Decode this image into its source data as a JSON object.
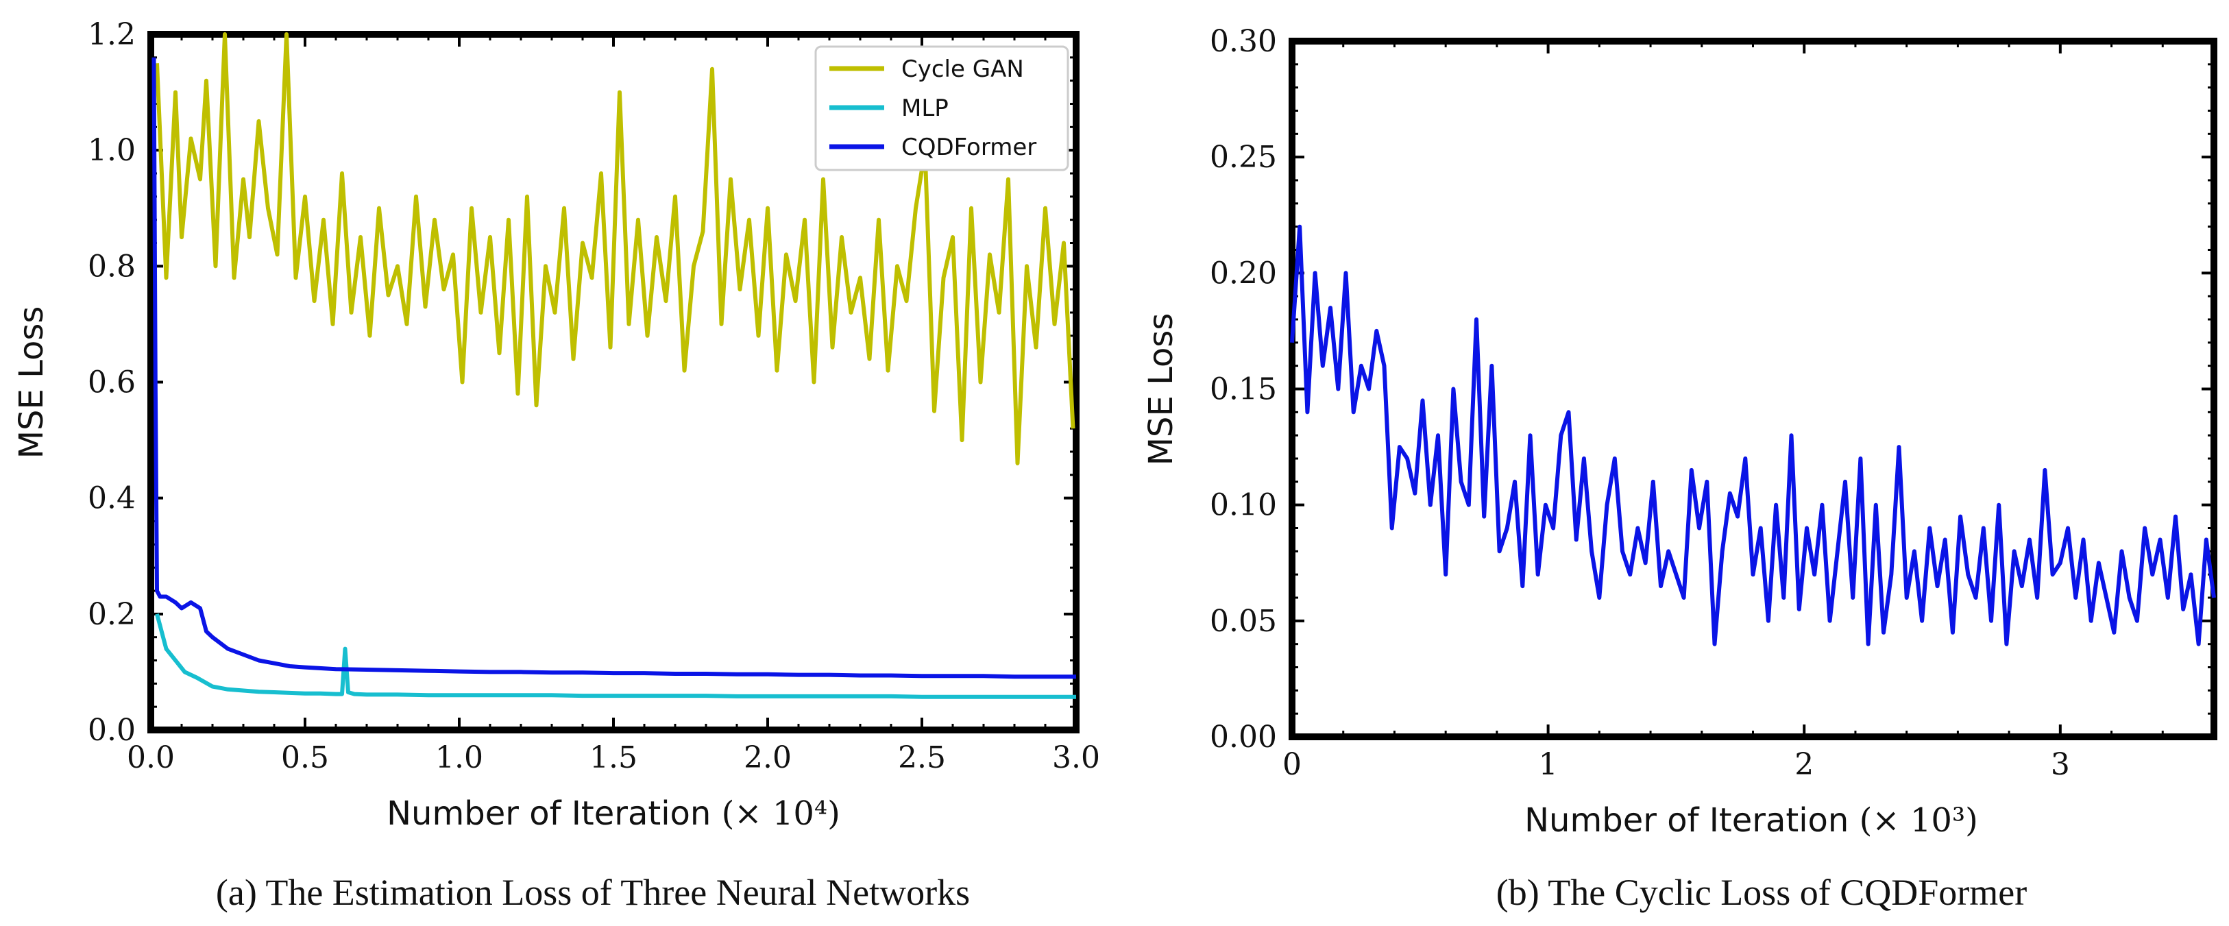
{
  "chart_data": [
    {
      "type": "line",
      "panel": "a",
      "caption": "(a)  The Estimation Loss of Three Neural Networks",
      "xlabel": "Number of Iteration",
      "xlabel_unit": "(× 10⁴)",
      "ylabel": "MSE Loss",
      "xlim": [
        0,
        3.0
      ],
      "ylim": [
        0,
        1.2
      ],
      "xticks": [
        0.0,
        0.5,
        1.0,
        1.5,
        2.0,
        2.5,
        3.0
      ],
      "xtick_labels": [
        "0.0",
        "0.5",
        "1.0",
        "1.5",
        "2.0",
        "2.5",
        "3.0"
      ],
      "yticks": [
        0.0,
        0.2,
        0.4,
        0.6,
        0.8,
        1.0,
        1.2
      ],
      "ytick_labels": [
        "0.0",
        "0.2",
        "0.4",
        "0.6",
        "0.8",
        "1.0",
        "1.2"
      ],
      "legend_position": "top-right",
      "series": [
        {
          "name": "Cycle GAN",
          "color": "#bfbf00",
          "x": [
            0.02,
            0.05,
            0.08,
            0.1,
            0.13,
            0.16,
            0.18,
            0.21,
            0.24,
            0.27,
            0.3,
            0.32,
            0.35,
            0.38,
            0.41,
            0.44,
            0.47,
            0.5,
            0.53,
            0.56,
            0.59,
            0.62,
            0.65,
            0.68,
            0.71,
            0.74,
            0.77,
            0.8,
            0.83,
            0.86,
            0.89,
            0.92,
            0.95,
            0.98,
            1.01,
            1.04,
            1.07,
            1.1,
            1.13,
            1.16,
            1.19,
            1.22,
            1.25,
            1.28,
            1.31,
            1.34,
            1.37,
            1.4,
            1.43,
            1.46,
            1.49,
            1.52,
            1.55,
            1.58,
            1.61,
            1.64,
            1.67,
            1.7,
            1.73,
            1.76,
            1.79,
            1.82,
            1.85,
            1.88,
            1.91,
            1.94,
            1.97,
            2.0,
            2.03,
            2.06,
            2.09,
            2.12,
            2.15,
            2.18,
            2.21,
            2.24,
            2.27,
            2.3,
            2.33,
            2.36,
            2.39,
            2.42,
            2.45,
            2.48,
            2.51,
            2.54,
            2.57,
            2.6,
            2.63,
            2.66,
            2.69,
            2.72,
            2.75,
            2.78,
            2.81,
            2.84,
            2.87,
            2.9,
            2.93,
            2.96,
            2.99
          ],
          "values": [
            1.15,
            0.78,
            1.1,
            0.85,
            1.02,
            0.95,
            1.12,
            0.8,
            1.2,
            0.78,
            0.95,
            0.85,
            1.05,
            0.9,
            0.82,
            1.2,
            0.78,
            0.92,
            0.74,
            0.88,
            0.7,
            0.96,
            0.72,
            0.85,
            0.68,
            0.9,
            0.75,
            0.8,
            0.7,
            0.92,
            0.73,
            0.88,
            0.76,
            0.82,
            0.6,
            0.9,
            0.72,
            0.85,
            0.65,
            0.88,
            0.58,
            0.92,
            0.56,
            0.8,
            0.72,
            0.9,
            0.64,
            0.84,
            0.78,
            0.96,
            0.66,
            1.1,
            0.7,
            0.88,
            0.68,
            0.85,
            0.74,
            0.92,
            0.62,
            0.8,
            0.86,
            1.14,
            0.7,
            0.95,
            0.76,
            0.88,
            0.68,
            0.9,
            0.62,
            0.82,
            0.74,
            0.88,
            0.6,
            0.95,
            0.66,
            0.85,
            0.72,
            0.78,
            0.64,
            0.88,
            0.62,
            0.8,
            0.74,
            0.9,
            1.0,
            0.55,
            0.78,
            0.85,
            0.5,
            0.9,
            0.6,
            0.82,
            0.72,
            0.95,
            0.46,
            0.8,
            0.66,
            0.9,
            0.7,
            0.84,
            0.52
          ]
        },
        {
          "name": "MLP",
          "color": "#17becf",
          "x": [
            0.02,
            0.05,
            0.08,
            0.11,
            0.15,
            0.2,
            0.25,
            0.3,
            0.35,
            0.4,
            0.45,
            0.5,
            0.55,
            0.6,
            0.62,
            0.63,
            0.64,
            0.66,
            0.7,
            0.8,
            0.9,
            1.0,
            1.1,
            1.2,
            1.3,
            1.4,
            1.5,
            1.6,
            1.7,
            1.8,
            1.9,
            2.0,
            2.1,
            2.2,
            2.3,
            2.4,
            2.5,
            2.6,
            2.7,
            2.8,
            2.9,
            3.0
          ],
          "values": [
            0.2,
            0.14,
            0.12,
            0.1,
            0.09,
            0.075,
            0.07,
            0.068,
            0.066,
            0.065,
            0.064,
            0.063,
            0.063,
            0.062,
            0.062,
            0.14,
            0.065,
            0.062,
            0.061,
            0.061,
            0.06,
            0.06,
            0.06,
            0.06,
            0.06,
            0.059,
            0.059,
            0.059,
            0.059,
            0.059,
            0.058,
            0.058,
            0.058,
            0.058,
            0.058,
            0.058,
            0.057,
            0.057,
            0.057,
            0.057,
            0.057,
            0.057
          ]
        },
        {
          "name": "CQDFormer",
          "color": "#0a14e6",
          "x": [
            0.01,
            0.015,
            0.02,
            0.03,
            0.05,
            0.08,
            0.1,
            0.13,
            0.16,
            0.18,
            0.2,
            0.25,
            0.3,
            0.35,
            0.4,
            0.45,
            0.5,
            0.6,
            0.7,
            0.8,
            0.9,
            1.0,
            1.1,
            1.2,
            1.3,
            1.4,
            1.5,
            1.6,
            1.7,
            1.8,
            1.9,
            2.0,
            2.1,
            2.2,
            2.3,
            2.4,
            2.5,
            2.6,
            2.7,
            2.8,
            2.9,
            3.0
          ],
          "values": [
            1.16,
            0.6,
            0.24,
            0.23,
            0.23,
            0.22,
            0.21,
            0.22,
            0.21,
            0.17,
            0.16,
            0.14,
            0.13,
            0.12,
            0.115,
            0.11,
            0.108,
            0.105,
            0.104,
            0.103,
            0.102,
            0.101,
            0.1,
            0.1,
            0.099,
            0.099,
            0.098,
            0.098,
            0.097,
            0.097,
            0.096,
            0.096,
            0.095,
            0.095,
            0.094,
            0.094,
            0.093,
            0.093,
            0.093,
            0.092,
            0.092,
            0.092
          ]
        }
      ]
    },
    {
      "type": "line",
      "panel": "b",
      "caption": "(b)  The Cyclic Loss of CQDFormer",
      "xlabel": "Number of Iteration",
      "xlabel_unit": "(× 10³)",
      "ylabel": "MSE Loss",
      "xlim": [
        0,
        3.6
      ],
      "ylim": [
        0,
        0.3
      ],
      "xticks": [
        0,
        1,
        2,
        3
      ],
      "xtick_labels": [
        "0",
        "1",
        "2",
        "3"
      ],
      "yticks": [
        0.0,
        0.05,
        0.1,
        0.15,
        0.2,
        0.25,
        0.3
      ],
      "ytick_labels": [
        "0.00",
        "0.05",
        "0.10",
        "0.15",
        "0.20",
        "0.25",
        "0.30"
      ],
      "series": [
        {
          "name": "CQDFormer",
          "color": "#0a14e6",
          "x": [
            0.0,
            0.03,
            0.06,
            0.09,
            0.12,
            0.15,
            0.18,
            0.21,
            0.24,
            0.27,
            0.3,
            0.33,
            0.36,
            0.39,
            0.42,
            0.45,
            0.48,
            0.51,
            0.54,
            0.57,
            0.6,
            0.63,
            0.66,
            0.69,
            0.72,
            0.75,
            0.78,
            0.81,
            0.84,
            0.87,
            0.9,
            0.93,
            0.96,
            0.99,
            1.02,
            1.05,
            1.08,
            1.11,
            1.14,
            1.17,
            1.2,
            1.23,
            1.26,
            1.29,
            1.32,
            1.35,
            1.38,
            1.41,
            1.44,
            1.47,
            1.5,
            1.53,
            1.56,
            1.59,
            1.62,
            1.65,
            1.68,
            1.71,
            1.74,
            1.77,
            1.8,
            1.83,
            1.86,
            1.89,
            1.92,
            1.95,
            1.98,
            2.01,
            2.04,
            2.07,
            2.1,
            2.13,
            2.16,
            2.19,
            2.22,
            2.25,
            2.28,
            2.31,
            2.34,
            2.37,
            2.4,
            2.43,
            2.46,
            2.49,
            2.52,
            2.55,
            2.58,
            2.61,
            2.64,
            2.67,
            2.7,
            2.73,
            2.76,
            2.79,
            2.82,
            2.85,
            2.88,
            2.91,
            2.94,
            2.97,
            3.0,
            3.03,
            3.06,
            3.09,
            3.12,
            3.15,
            3.18,
            3.21,
            3.24,
            3.27,
            3.3,
            3.33,
            3.36,
            3.39,
            3.42,
            3.45,
            3.48,
            3.51,
            3.54,
            3.57,
            3.6
          ],
          "values": [
            0.17,
            0.22,
            0.14,
            0.2,
            0.16,
            0.185,
            0.15,
            0.2,
            0.14,
            0.16,
            0.15,
            0.175,
            0.16,
            0.09,
            0.125,
            0.12,
            0.105,
            0.145,
            0.1,
            0.13,
            0.07,
            0.15,
            0.11,
            0.1,
            0.18,
            0.095,
            0.16,
            0.08,
            0.09,
            0.11,
            0.065,
            0.13,
            0.07,
            0.1,
            0.09,
            0.13,
            0.14,
            0.085,
            0.12,
            0.08,
            0.06,
            0.1,
            0.12,
            0.08,
            0.07,
            0.09,
            0.075,
            0.11,
            0.065,
            0.08,
            0.07,
            0.06,
            0.115,
            0.09,
            0.11,
            0.04,
            0.08,
            0.105,
            0.095,
            0.12,
            0.07,
            0.09,
            0.05,
            0.1,
            0.06,
            0.13,
            0.055,
            0.09,
            0.07,
            0.1,
            0.05,
            0.08,
            0.11,
            0.06,
            0.12,
            0.04,
            0.1,
            0.045,
            0.07,
            0.125,
            0.06,
            0.08,
            0.05,
            0.09,
            0.065,
            0.085,
            0.045,
            0.095,
            0.07,
            0.06,
            0.09,
            0.05,
            0.1,
            0.04,
            0.08,
            0.065,
            0.085,
            0.06,
            0.115,
            0.07,
            0.075,
            0.09,
            0.06,
            0.085,
            0.05,
            0.075,
            0.06,
            0.045,
            0.08,
            0.06,
            0.05,
            0.09,
            0.07,
            0.085,
            0.06,
            0.095,
            0.055,
            0.07,
            0.04,
            0.085,
            0.06
          ]
        }
      ]
    }
  ]
}
